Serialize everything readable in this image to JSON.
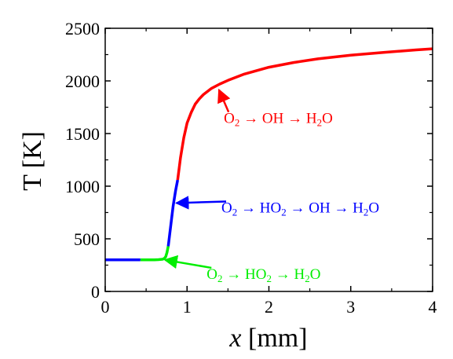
{
  "chart_data": {
    "type": "line",
    "xlabel_var": "x",
    "xlabel_unit": "[mm]",
    "ylabel": "T [K]",
    "xlim": [
      0,
      4
    ],
    "ylim": [
      0,
      2500
    ],
    "xticks": [
      "0",
      "1",
      "2",
      "3",
      "4"
    ],
    "yticks": [
      "0",
      "500",
      "1000",
      "1500",
      "2000",
      "2500"
    ],
    "grid": false,
    "series": [
      {
        "color": "#00ee00",
        "x": [
          0.43,
          0.5,
          0.6,
          0.65,
          0.7,
          0.72,
          0.74,
          0.755,
          0.77
        ],
        "y": [
          300,
          300,
          300,
          302,
          306,
          313,
          330,
          370,
          430
        ]
      },
      {
        "color": "#0000ff",
        "x": [
          0.0,
          0.1,
          0.2,
          0.3,
          0.43
        ],
        "y": [
          300,
          300,
          300,
          300,
          300
        ]
      },
      {
        "color": "#0000ff",
        "x": [
          0.77,
          0.8,
          0.83,
          0.86,
          0.885
        ],
        "y": [
          430,
          620,
          810,
          960,
          1060
        ]
      },
      {
        "color": "#ff0000",
        "x": [
          0.885,
          0.92,
          0.96,
          1.0,
          1.05,
          1.1,
          1.15,
          1.2,
          1.3,
          1.4,
          1.5,
          1.7,
          2.0,
          2.3,
          2.6,
          3.0,
          3.4,
          3.8,
          4.0
        ],
        "y": [
          1060,
          1270,
          1460,
          1600,
          1700,
          1780,
          1830,
          1870,
          1930,
          1970,
          2005,
          2065,
          2130,
          2175,
          2210,
          2245,
          2270,
          2295,
          2305
        ]
      }
    ],
    "annotations": [
      {
        "color": "#ff0000",
        "parts": [
          {
            "text": "O"
          },
          {
            "text": "2",
            "sub": true
          },
          {
            "text": " → OH → H"
          },
          {
            "text": "2",
            "sub": true
          },
          {
            "text": "O"
          }
        ],
        "text_x": 1.45,
        "text_y": 1600,
        "arrow_to_x": 1.39,
        "arrow_to_y": 1915
      },
      {
        "color": "#0000ff",
        "parts": [
          {
            "text": "O"
          },
          {
            "text": "2",
            "sub": true
          },
          {
            "text": " → HO"
          },
          {
            "text": "2",
            "sub": true
          },
          {
            "text": " → OH → H"
          },
          {
            "text": "2",
            "sub": true
          },
          {
            "text": "O"
          }
        ],
        "text_x": 1.42,
        "text_y": 750,
        "arrow_to_x": 0.87,
        "arrow_to_y": 840
      },
      {
        "color": "#00ee00",
        "parts": [
          {
            "text": "O"
          },
          {
            "text": "2",
            "sub": true
          },
          {
            "text": " → HO"
          },
          {
            "text": "2",
            "sub": true
          },
          {
            "text": " → H"
          },
          {
            "text": "2",
            "sub": true
          },
          {
            "text": "O"
          }
        ],
        "text_x": 1.24,
        "text_y": 120,
        "arrow_to_x": 0.73,
        "arrow_to_y": 300
      }
    ]
  }
}
